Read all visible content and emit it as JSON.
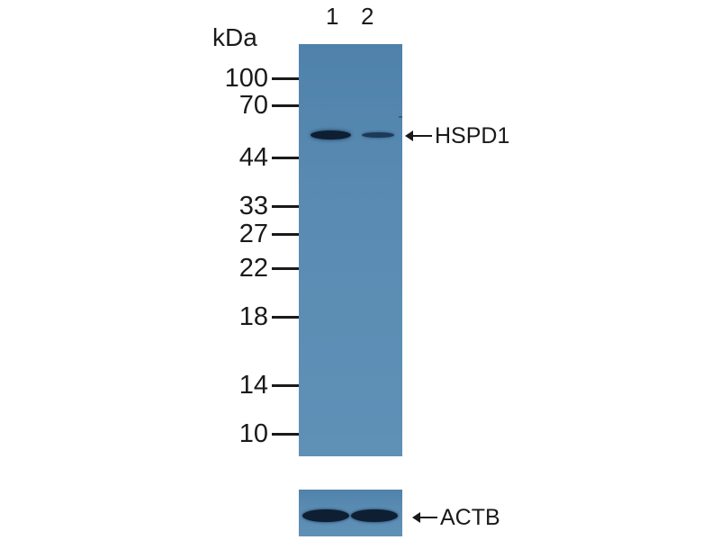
{
  "unit_label": "kDa",
  "lanes": [
    "1",
    "2"
  ],
  "markers": [
    "100",
    "70",
    "44",
    "33",
    "27",
    "22",
    "18",
    "14",
    "10"
  ],
  "target_label": "HSPD1",
  "loading_control_label": "ACTB",
  "colors": {
    "membrane": "#5a8cb3",
    "band": "#0e1e33"
  }
}
